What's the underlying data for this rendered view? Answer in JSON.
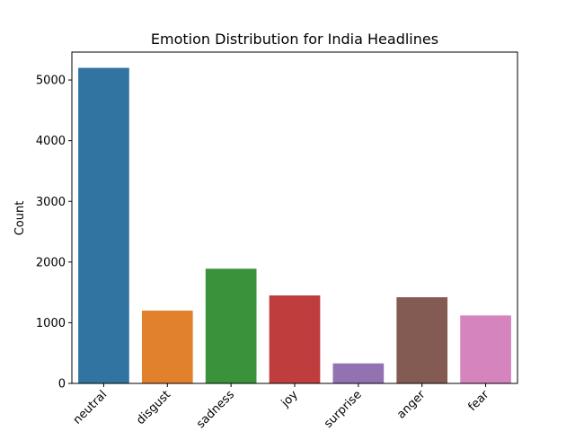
{
  "chart_data": {
    "type": "bar",
    "title": "Emotion Distribution for India Headlines",
    "xlabel": "",
    "ylabel": "Count",
    "categories": [
      "neutral",
      "disgust",
      "sadness",
      "joy",
      "surprise",
      "anger",
      "fear"
    ],
    "values": [
      5200,
      1200,
      1890,
      1450,
      330,
      1420,
      1120
    ],
    "colors": [
      "#3274a1",
      "#e1812c",
      "#3a923a",
      "#c03d3e",
      "#9372b2",
      "#845b53",
      "#d684bd"
    ],
    "ylim": [
      0,
      5460
    ],
    "yticks": [
      0,
      1000,
      2000,
      3000,
      4000,
      5000
    ],
    "grid": false,
    "legend": "none"
  }
}
